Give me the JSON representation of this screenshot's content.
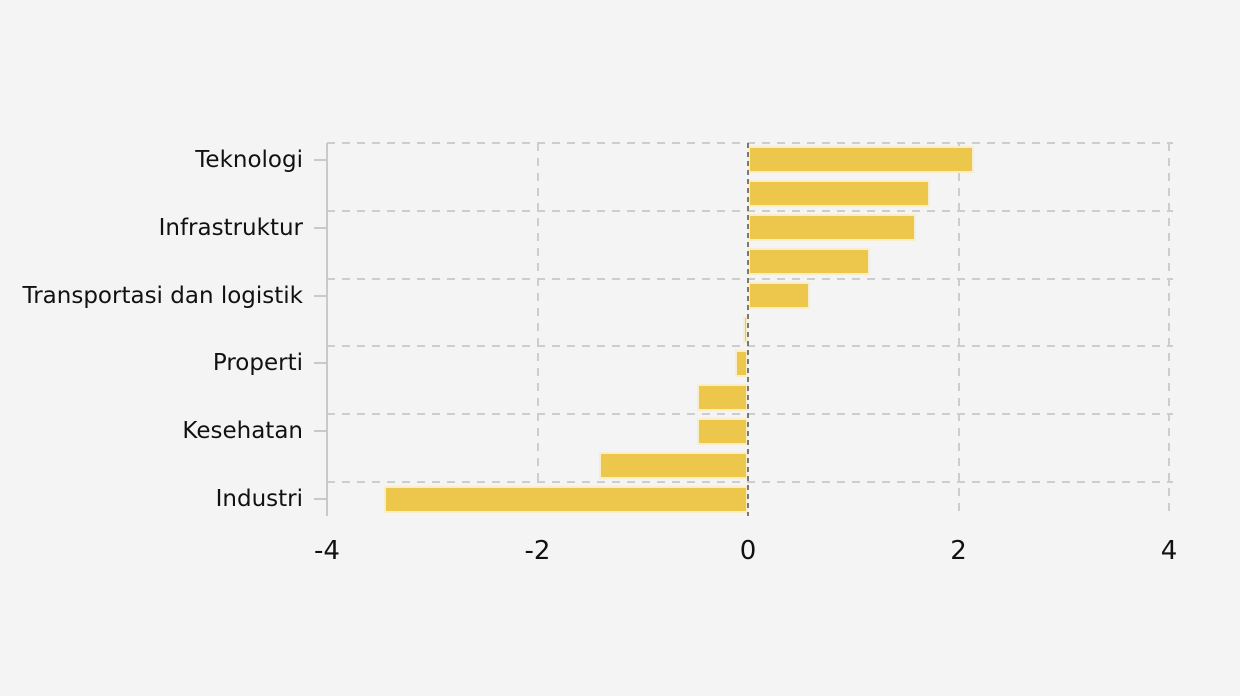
{
  "canvas": {
    "background_color": "#f4f4f5"
  },
  "chart_data": {
    "type": "bar",
    "orientation": "horizontal",
    "title": "",
    "xlabel": "",
    "ylabel": "",
    "legend_position": "none",
    "categories": [
      "Teknologi",
      "",
      "Infrastruktur",
      "",
      "Transportasi dan logistik",
      "",
      "Properti",
      "",
      "Kesehatan",
      "",
      "Industri"
    ],
    "values": [
      2.15,
      1.73,
      1.6,
      1.16,
      0.59,
      -0.05,
      -0.12,
      -0.48,
      -0.48,
      -1.42,
      -3.46
    ],
    "xlim": [
      -4,
      4
    ],
    "x_ticks": [
      {
        "label": "-4",
        "value": -4
      },
      {
        "label": "-2",
        "value": -2
      },
      {
        "label": "0",
        "value": 0
      },
      {
        "label": "2",
        "value": 2
      },
      {
        "label": "4",
        "value": 4
      }
    ],
    "grid": "dashed",
    "colors": {
      "bar_fill": "#edc64c",
      "bar_edge": "#f7eecd",
      "gridline": "#cdcdcd",
      "zero_line": "#7b7a70",
      "axis_line": "#c9c9c9",
      "text": "#111111"
    }
  }
}
